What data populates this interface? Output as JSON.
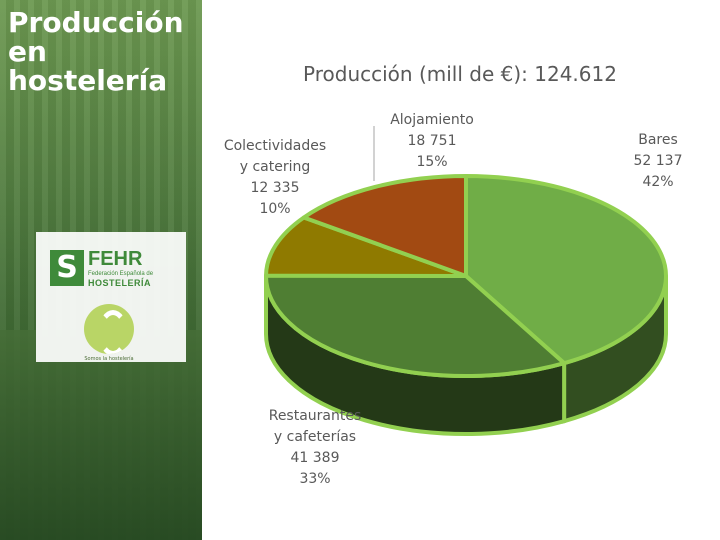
{
  "sidebar": {
    "title": "Producción en hostelería",
    "logo_name": "FEHR",
    "logo_subtitle": "Federación Española de",
    "logo_subtitle2": "HOSTELERÍA",
    "seal_caption": "Somos la hostelería",
    "colors": {
      "brand": "#3f8a3a",
      "sidebar": "#4a7a36"
    }
  },
  "chart_data": {
    "type": "pie",
    "title": "Producción (mill de €): 124.612",
    "three_d": true,
    "slices": [
      {
        "label": "Bares",
        "value_text": "52 137",
        "value": 52137,
        "pct": 42,
        "pct_text": "42%",
        "color": "#70ad47"
      },
      {
        "label": "Restaurantes y cafeterías",
        "label_lines": [
          "Restaurantes",
          "y cafeterías"
        ],
        "value_text": "41 389",
        "value": 41389,
        "pct": 33,
        "pct_text": "33%",
        "color": "#4f7e33"
      },
      {
        "label": "Colectividades y catering",
        "label_lines": [
          "Colectividades",
          "y catering"
        ],
        "value_text": "12 335",
        "value": 12335,
        "pct": 10,
        "pct_text": "10%",
        "color": "#8f7a00"
      },
      {
        "label": "Alojamiento",
        "label_lines": [
          "Alojamiento"
        ],
        "value_text": "18 751",
        "value": 18751,
        "pct": 15,
        "pct_text": "15%",
        "color": "#a24a12"
      }
    ],
    "edge_color": "#92d050"
  }
}
